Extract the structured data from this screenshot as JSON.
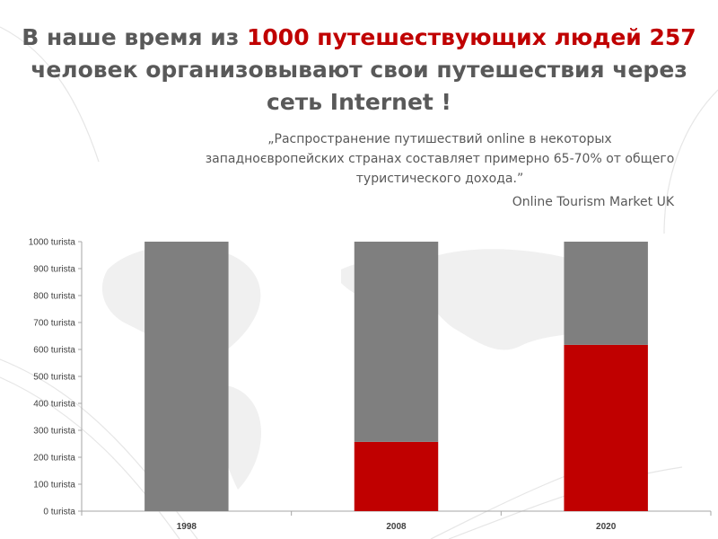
{
  "slide": {
    "title_part1": "В наше время из ",
    "title_highlight": "1000 путешествующих людей 257",
    "title_part2": "человек организовывают свои путешествия через сеть Internet !",
    "quote": "„Распространение путишествий online в некоторых западноєвропейских странах составляет примерно 65-70% от общего туристического дохода.”",
    "quote_source": "Online Tourism Market UK"
  },
  "chart_data": {
    "type": "bar",
    "stacked": true,
    "categories": [
      "1998",
      "2008",
      "2020"
    ],
    "series": [
      {
        "color": "#c00000",
        "values": [
          0,
          257,
          617
        ]
      },
      {
        "color": "#7f7f7f",
        "values": [
          1000,
          743,
          383
        ]
      }
    ],
    "yticks": [
      "0 turista",
      "100 turista",
      "200 turista",
      "300 turista",
      "400 turista",
      "500 turista",
      "600 turista",
      "700 turista",
      "800 turista",
      "900 turista",
      "1000 turista"
    ],
    "ylim": [
      0,
      1000
    ],
    "grid": false,
    "legend": "none"
  }
}
